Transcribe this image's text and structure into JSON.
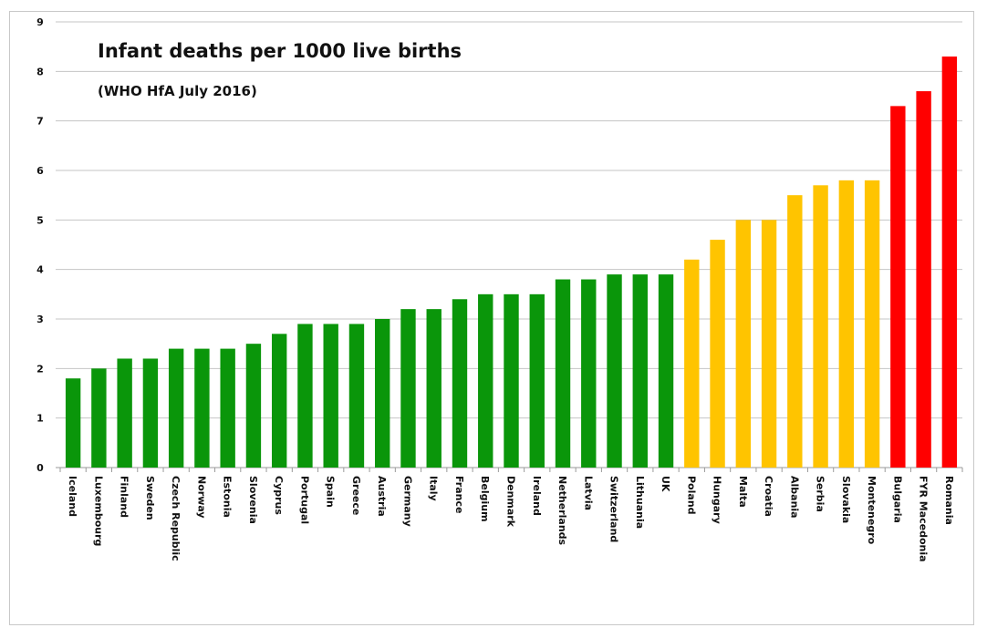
{
  "chart_data": {
    "type": "bar",
    "title": "Infant deaths per 1000 live births",
    "subtitle": "(WHO HfA July 2016)",
    "xlabel": "",
    "ylabel": "",
    "ylim": [
      0,
      9
    ],
    "yticks": [
      "0",
      "1",
      "2",
      "3",
      "4",
      "5",
      "6",
      "7",
      "8",
      "9"
    ],
    "grid": true,
    "legend": "none",
    "colors": {
      "low": "#0a960a",
      "mid": "#ffc400",
      "high": "#ff0000"
    },
    "categories": [
      "Iceland",
      "Luxembourg",
      "Finland",
      "Sweden",
      "Czech Republic",
      "Norway",
      "Estonia",
      "Slovenia",
      "Cyprus",
      "Portugal",
      "Spain",
      "Greece",
      "Austria",
      "Germany",
      "Italy",
      "France",
      "Belgium",
      "Denmark",
      "Ireland",
      "Netherlands",
      "Latvia",
      "Switzerland",
      "Lithuania",
      "UK",
      "Poland",
      "Hungary",
      "Malta",
      "Croatia",
      "Albania",
      "Serbia",
      "Slovakia",
      "Montenegro",
      "Bulgaria",
      "FYR Macedonia",
      "Romania"
    ],
    "values": [
      1.8,
      2.0,
      2.2,
      2.2,
      2.4,
      2.4,
      2.4,
      2.5,
      2.7,
      2.9,
      2.9,
      2.9,
      3.0,
      3.2,
      3.2,
      3.4,
      3.5,
      3.5,
      3.5,
      3.8,
      3.8,
      3.9,
      3.9,
      3.9,
      4.2,
      4.6,
      5.0,
      5.0,
      5.5,
      5.7,
      5.8,
      5.8,
      7.3,
      7.6,
      8.3
    ],
    "groups": [
      "low",
      "low",
      "low",
      "low",
      "low",
      "low",
      "low",
      "low",
      "low",
      "low",
      "low",
      "low",
      "low",
      "low",
      "low",
      "low",
      "low",
      "low",
      "low",
      "low",
      "low",
      "low",
      "low",
      "low",
      "mid",
      "mid",
      "mid",
      "mid",
      "mid",
      "mid",
      "mid",
      "mid",
      "high",
      "high",
      "high"
    ]
  }
}
